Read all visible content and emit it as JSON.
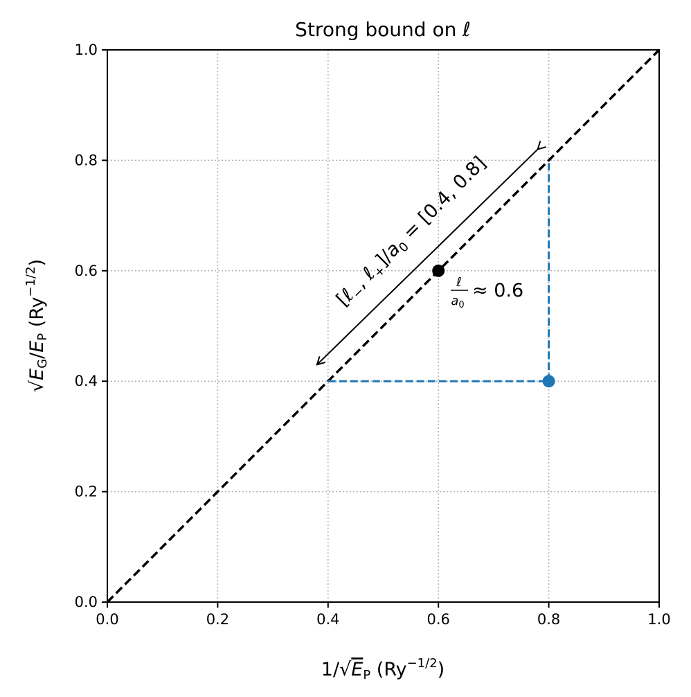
{
  "chart_data": {
    "type": "line",
    "title_text": "Strong bound on",
    "title_symbol": "ℓ",
    "xlabel": {
      "prefix": "1/",
      "radical": "√",
      "var": "E",
      "sub": "P",
      "units": " (Ry",
      "exp": "−1/2",
      "close": ")"
    },
    "ylabel": {
      "radical": "√",
      "var1": "E",
      "sub1": "G",
      "slash": "/",
      "var2": "E",
      "sub2": "P",
      "units": " (Ry",
      "exp": "−1/2",
      "close": ")"
    },
    "xlim": [
      0.0,
      1.0
    ],
    "ylim": [
      0.0,
      1.0
    ],
    "xticks": [
      0.0,
      0.2,
      0.4,
      0.6,
      0.8,
      1.0
    ],
    "yticks": [
      0.0,
      0.2,
      0.4,
      0.6,
      0.8,
      1.0
    ],
    "xtick_labels": [
      "0.0",
      "0.2",
      "0.4",
      "0.6",
      "0.8",
      "1.0"
    ],
    "ytick_labels": [
      "0.0",
      "0.2",
      "0.4",
      "0.6",
      "0.8",
      "1.0"
    ],
    "grid": true,
    "series": [
      {
        "name": "diagonal",
        "style": "dashed",
        "color": "#000000",
        "x": [
          0.0,
          1.0
        ],
        "y": [
          0.0,
          1.0
        ]
      },
      {
        "name": "horizontal projection",
        "style": "dashed",
        "color": "#1f77b4",
        "x": [
          0.4,
          0.8
        ],
        "y": [
          0.4,
          0.4
        ]
      },
      {
        "name": "vertical projection",
        "style": "dashed",
        "color": "#1f77b4",
        "x": [
          0.8,
          0.8
        ],
        "y": [
          0.4,
          0.8
        ]
      }
    ],
    "points": [
      {
        "name": "measured point",
        "x": 0.8,
        "y": 0.4,
        "color": "#1f77b4"
      },
      {
        "name": "center point",
        "x": 0.6,
        "y": 0.6,
        "color": "#000000"
      }
    ],
    "arrow": {
      "from": [
        0.78,
        0.82
      ],
      "to": [
        0.38,
        0.43
      ],
      "double_headed": true
    },
    "annotations": {
      "interval": {
        "text_main": "[ℓ−, ℓ+]/a0 = [0.4, 0.8]",
        "open": "[",
        "l1": "ℓ",
        "sub_minus": "−",
        "comma": ", ",
        "l2": "ℓ",
        "sub_plus": "+",
        "close": "]/",
        "a": "a",
        "sub0": "0",
        "eq": " = [0.4, 0.8]"
      },
      "estimate": {
        "numerator": "ℓ",
        "denominator_a": "a",
        "denominator_sub": "0",
        "rest": " ≈ 0.6"
      }
    }
  }
}
